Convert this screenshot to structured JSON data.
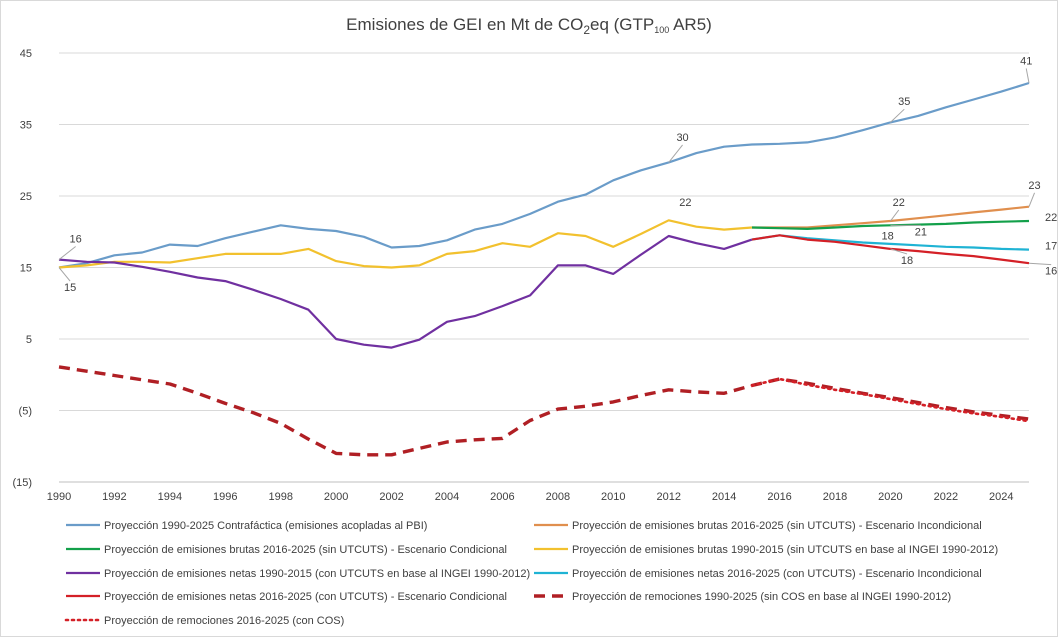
{
  "chart_data": {
    "type": "line",
    "title": {
      "prefix": "Emisiones  de GEI en Mt de CO",
      "sub": "2",
      "mid": "eq  (GTP",
      "sub2": "100",
      "suffix": " AR5)"
    },
    "xlabel": "",
    "ylabel": "",
    "xlim": [
      1990,
      2025
    ],
    "ylim": [
      -15,
      45
    ],
    "x_ticks": [
      "1990",
      "1992",
      "1994",
      "1996",
      "1998",
      "2000",
      "2002",
      "2004",
      "2006",
      "2008",
      "2010",
      "2012",
      "2014",
      "2016",
      "2018",
      "2020",
      "2022",
      "2024"
    ],
    "y_ticks": [
      {
        "value": 45,
        "label": "45"
      },
      {
        "value": 35,
        "label": "35"
      },
      {
        "value": 25,
        "label": "25"
      },
      {
        "value": 15,
        "label": "15"
      },
      {
        "value": 5,
        "label": "5"
      },
      {
        "value": -5,
        "label": "(5)"
      },
      {
        "value": -15,
        "label": "(15)"
      }
    ],
    "grid": {
      "horizontal": true,
      "vertical": false
    },
    "legend_position": "bottom",
    "series": [
      {
        "name": "Proyección 1990-2025 Contrafáctica (emisiones acopladas al PBI)",
        "color": "#6a9cc9",
        "dash": "solid",
        "width": 2.2,
        "x": [
          1990,
          1991,
          1992,
          1993,
          1994,
          1995,
          1996,
          1997,
          1998,
          1999,
          2000,
          2001,
          2002,
          2003,
          2004,
          2005,
          2006,
          2007,
          2008,
          2009,
          2010,
          2011,
          2012,
          2013,
          2014,
          2015,
          2016,
          2017,
          2018,
          2019,
          2020,
          2021,
          2022,
          2023,
          2024,
          2025
        ],
        "y": [
          15.0,
          15.6,
          16.7,
          17.1,
          18.2,
          18.0,
          19.1,
          20.0,
          20.9,
          20.4,
          20.1,
          19.3,
          17.8,
          18.0,
          18.8,
          20.3,
          21.1,
          22.5,
          24.2,
          25.2,
          27.2,
          28.6,
          29.7,
          31.0,
          31.9,
          32.2,
          32.3,
          32.5,
          33.2,
          34.2,
          35.3,
          36.2,
          37.4,
          38.5,
          39.6,
          40.8
        ]
      },
      {
        "name": "Proyección de emisiones brutas 2016-2025 (sin UTCUTS) - Escenario Incondicional",
        "color": "#e08f4e",
        "dash": "solid",
        "width": 2.2,
        "x": [
          2015,
          2016,
          2017,
          2018,
          2019,
          2020,
          2021,
          2022,
          2023,
          2024,
          2025
        ],
        "y": [
          20.6,
          20.6,
          20.6,
          20.9,
          21.2,
          21.5,
          21.9,
          22.3,
          22.7,
          23.1,
          23.5
        ]
      },
      {
        "name": "Proyección de emisiones brutas 2016-2025 (sin UTCUTS) - Escenario Condicional",
        "color": "#13a04a",
        "dash": "solid",
        "width": 2.2,
        "x": [
          2015,
          2016,
          2017,
          2018,
          2019,
          2020,
          2021,
          2022,
          2023,
          2024,
          2025
        ],
        "y": [
          20.6,
          20.5,
          20.4,
          20.6,
          20.8,
          20.9,
          21.0,
          21.1,
          21.3,
          21.4,
          21.5
        ]
      },
      {
        "name": "Proyección de emisiones brutas 1990-2015 (sin UTCUTS en base al INGEI 1990-2012)",
        "color": "#f2c12e",
        "dash": "solid",
        "width": 2.2,
        "x": [
          1990,
          1991,
          1992,
          1993,
          1994,
          1995,
          1996,
          1997,
          1998,
          1999,
          2000,
          2001,
          2002,
          2003,
          2004,
          2005,
          2006,
          2007,
          2008,
          2009,
          2010,
          2011,
          2012,
          2013,
          2014,
          2015
        ],
        "y": [
          15.0,
          15.3,
          15.8,
          15.8,
          15.7,
          16.3,
          16.9,
          16.9,
          16.9,
          17.6,
          15.9,
          15.2,
          15.0,
          15.3,
          16.9,
          17.3,
          18.4,
          17.9,
          19.8,
          19.4,
          17.9,
          19.7,
          21.6,
          20.7,
          20.3,
          20.6
        ]
      },
      {
        "name": "Proyección de emisiones netas 1990-2015 (con UTCUTS en base al INGEI 1990-2012)",
        "color": "#7030a0",
        "dash": "solid",
        "width": 2.2,
        "x": [
          1990,
          1991,
          1992,
          1993,
          1994,
          1995,
          1996,
          1997,
          1998,
          1999,
          2000,
          2001,
          2002,
          2003,
          2004,
          2005,
          2006,
          2007,
          2008,
          2009,
          2010,
          2011,
          2012,
          2013,
          2014,
          2015
        ],
        "y": [
          16.1,
          15.8,
          15.7,
          15.1,
          14.4,
          13.6,
          13.1,
          11.9,
          10.6,
          9.1,
          5.0,
          4.2,
          3.8,
          4.9,
          7.4,
          8.2,
          9.6,
          11.1,
          15.3,
          15.3,
          14.1,
          16.8,
          19.4,
          18.4,
          17.6,
          18.9
        ]
      },
      {
        "name": "Proyección de emisiones netas 2016-2025 (con UTCUTS) - Escenario Incondicional",
        "color": "#1fb3d4",
        "dash": "solid",
        "width": 2.2,
        "x": [
          2015,
          2016,
          2017,
          2018,
          2019,
          2020,
          2021,
          2022,
          2023,
          2024,
          2025
        ],
        "y": [
          18.9,
          19.5,
          19.1,
          18.8,
          18.5,
          18.3,
          18.1,
          17.9,
          17.8,
          17.6,
          17.5
        ]
      },
      {
        "name": "Proyección de emisiones netas 2016-2025 (con UTCUTS) - Escenario Condicional",
        "color": "#d42027",
        "dash": "solid",
        "width": 2.2,
        "x": [
          2015,
          2016,
          2017,
          2018,
          2019,
          2020,
          2021,
          2022,
          2023,
          2024,
          2025
        ],
        "y": [
          18.9,
          19.5,
          18.9,
          18.6,
          18.1,
          17.6,
          17.3,
          16.9,
          16.6,
          16.1,
          15.6
        ]
      },
      {
        "name": "Proyección de remociones 1990-2025 (sin COS en base al INGEI 1990-2012)",
        "color": "#b01f24",
        "dash": "dash",
        "width": 3.4,
        "x": [
          1990,
          1991,
          1992,
          1993,
          1994,
          1995,
          1996,
          1997,
          1998,
          1999,
          2000,
          2001,
          2002,
          2003,
          2004,
          2005,
          2006,
          2007,
          2008,
          2009,
          2010,
          2011,
          2012,
          2013,
          2014,
          2015,
          2016,
          2017,
          2018,
          2019,
          2020,
          2021,
          2022,
          2023,
          2024,
          2025
        ],
        "y": [
          1.1,
          0.5,
          -0.1,
          -0.7,
          -1.3,
          -2.6,
          -4.0,
          -5.3,
          -6.8,
          -9.0,
          -11.0,
          -11.2,
          -11.2,
          -10.3,
          -9.4,
          -9.1,
          -8.9,
          -6.4,
          -4.8,
          -4.4,
          -3.8,
          -2.9,
          -2.1,
          -2.4,
          -2.6,
          -1.5,
          -0.6,
          -1.2,
          -1.9,
          -2.6,
          -3.2,
          -3.9,
          -4.6,
          -5.2,
          -5.7,
          -6.2
        ]
      },
      {
        "name": "Proyección de remociones 2016-2025 (con COS)",
        "color": "#d42027",
        "dash": "dot",
        "width": 2.6,
        "x": [
          2015,
          2016,
          2017,
          2018,
          2019,
          2020,
          2021,
          2022,
          2023,
          2024,
          2025
        ],
        "y": [
          -1.5,
          -0.6,
          -1.4,
          -2.1,
          -2.7,
          -3.4,
          -4.1,
          -4.8,
          -5.4,
          -5.9,
          -6.5
        ]
      }
    ],
    "data_labels": [
      {
        "text": "16",
        "x": 1990,
        "y": 16.1,
        "lx": 1990.6,
        "ly": 18.5,
        "leader": true
      },
      {
        "text": "15",
        "x": 1990,
        "y": 15.0,
        "lx": 1990.4,
        "ly": 11.7,
        "leader": true
      },
      {
        "text": "30",
        "x": 2012,
        "y": 29.7,
        "lx": 2012.5,
        "ly": 32.7,
        "leader": true
      },
      {
        "text": "22",
        "x": 2012,
        "y": 21.6,
        "lx": 2012.6,
        "ly": 23.6,
        "leader": false
      },
      {
        "text": "35",
        "x": 2020,
        "y": 35.3,
        "lx": 2020.5,
        "ly": 37.7,
        "leader": true
      },
      {
        "text": "41",
        "x": 2025,
        "y": 40.8,
        "lx": 2024.9,
        "ly": 43.4,
        "leader": true
      },
      {
        "text": "22",
        "x": 2020,
        "y": 21.5,
        "lx": 2020.3,
        "ly": 23.6,
        "leader": true
      },
      {
        "text": "23",
        "x": 2025,
        "y": 23.5,
        "lx": 2025.2,
        "ly": 26.0,
        "leader": true
      },
      {
        "text": "21",
        "x": 2020,
        "y": 20.9,
        "lx": 2021.1,
        "ly": 19.5,
        "leader": true
      },
      {
        "text": "22",
        "x": 2025,
        "y": 21.5,
        "lx": 2025.8,
        "ly": 21.5,
        "leader": false
      },
      {
        "text": "18",
        "x": 2020,
        "y": 18.3,
        "lx": 2019.9,
        "ly": 18.9,
        "leader": false
      },
      {
        "text": "17",
        "x": 2025,
        "y": 17.5,
        "lx": 2025.8,
        "ly": 17.5,
        "leader": false
      },
      {
        "text": "18",
        "x": 2020,
        "y": 17.6,
        "lx": 2020.6,
        "ly": 15.5,
        "leader": true
      },
      {
        "text": "16",
        "x": 2025,
        "y": 15.6,
        "lx": 2025.8,
        "ly": 14.0,
        "leader": true
      }
    ]
  }
}
